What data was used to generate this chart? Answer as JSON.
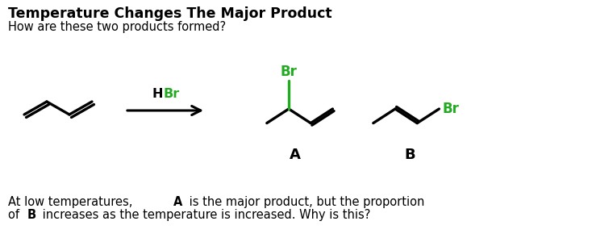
{
  "title": "Temperature Changes The Major Product",
  "subtitle": "How are these two products formed?",
  "label_A": "A",
  "label_B": "B",
  "hbr_H": "H",
  "hbr_Br": "Br",
  "br_color": "#22aa22",
  "black": "#000000",
  "bg_color": "#ffffff",
  "footer_parts_1": [
    "At low temperatures, ",
    "A",
    " is the major product, but the proportion"
  ],
  "footer_parts_2": [
    "of ",
    "B",
    " increases as the temperature is increased. Why is this?"
  ],
  "footer_bold": [
    false,
    true,
    false
  ],
  "fig_width": 7.34,
  "fig_height": 3.0,
  "dpi": 100
}
